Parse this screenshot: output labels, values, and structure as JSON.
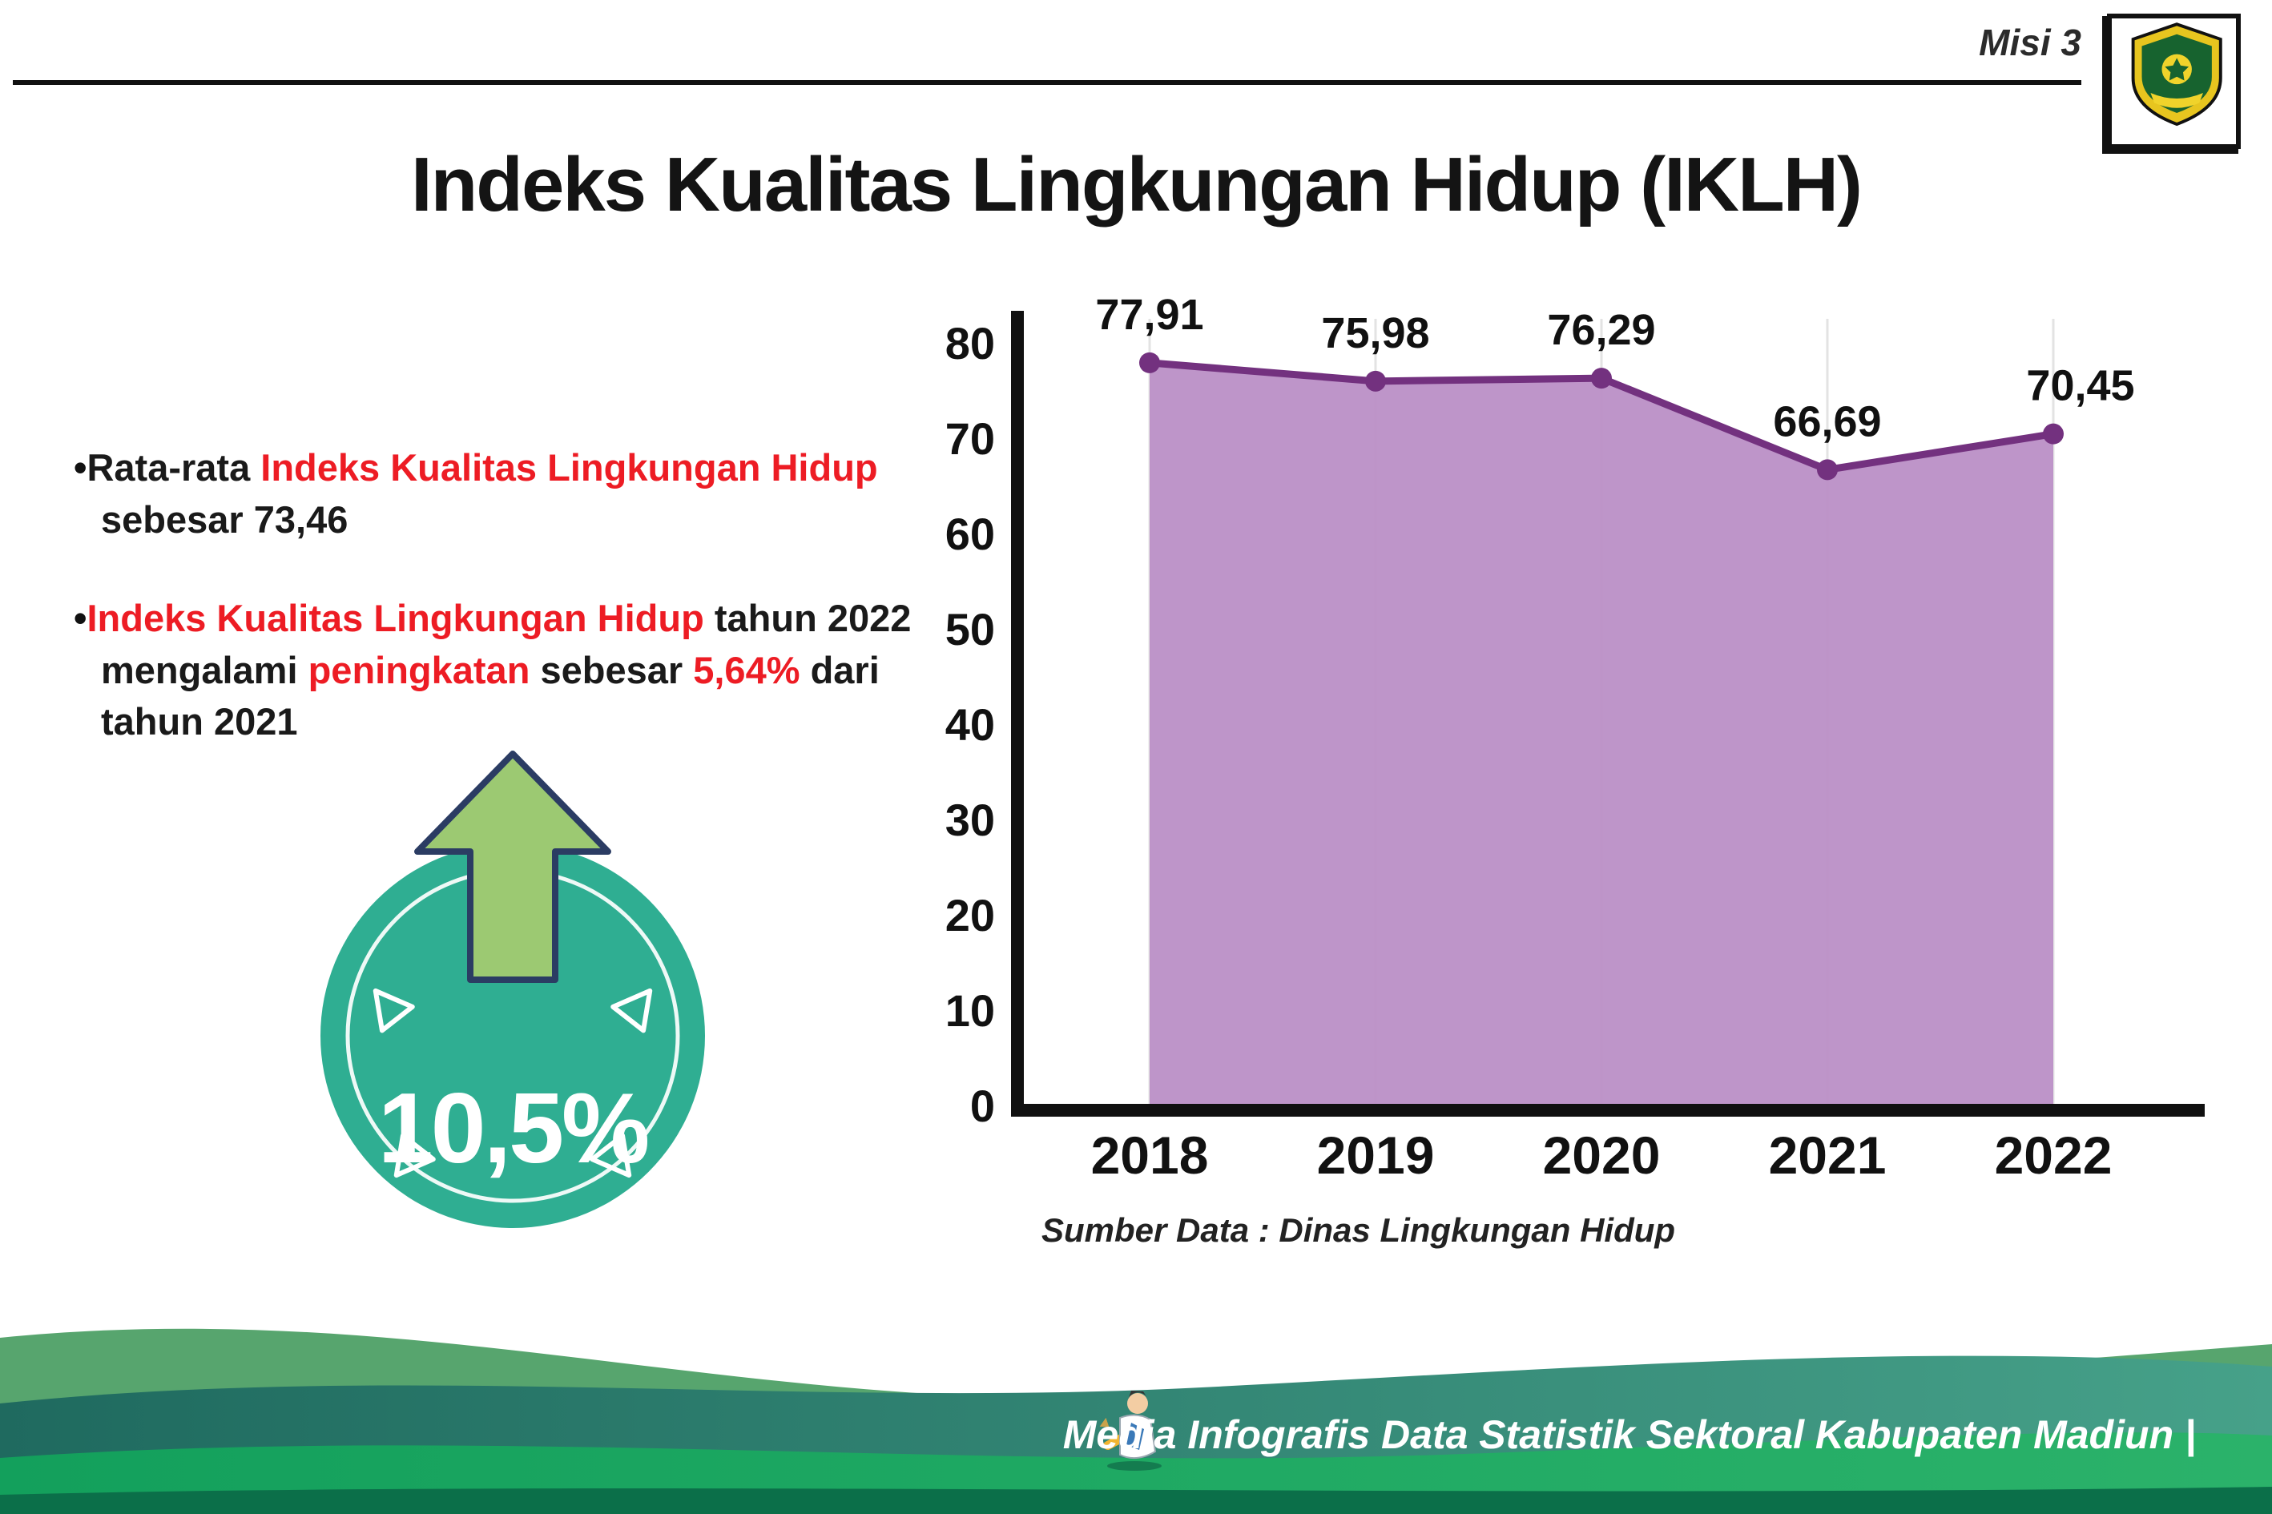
{
  "header": {
    "misi_label": "Misi 3",
    "title": "Indeks Kualitas Lingkungan Hidup (IKLH)"
  },
  "bullet_char": "•",
  "bullets": [
    {
      "segments": [
        {
          "text": "Rata-rata ",
          "color": "#1a1a1a"
        },
        {
          "text": "Indeks Kualitas Lingkungan Hidup",
          "color": "#ed1c24"
        },
        {
          "text": " sebesar 73,46",
          "color": "#1a1a1a"
        }
      ]
    },
    {
      "segments": [
        {
          "text": "Indeks Kualitas Lingkungan Hidup",
          "color": "#ed1c24"
        },
        {
          "text": " tahun 2022 mengalami ",
          "color": "#1a1a1a"
        },
        {
          "text": "peningkatan",
          "color": "#ed1c24"
        },
        {
          "text": " sebesar ",
          "color": "#1a1a1a"
        },
        {
          "text": "5,64%",
          "color": "#ed1c24"
        },
        {
          "text": " dari tahun 2021",
          "color": "#1a1a1a"
        }
      ]
    }
  ],
  "badge": {
    "value": "10,5%",
    "circle_color": "#2fae92",
    "arrow_color": "#9cc972",
    "arrow_outline": "#2b3c63"
  },
  "chart_data": {
    "type": "area",
    "categories": [
      "2018",
      "2019",
      "2020",
      "2021",
      "2022"
    ],
    "values": [
      77.91,
      75.98,
      76.29,
      66.69,
      70.45
    ],
    "value_labels": [
      "77,91",
      "75,98",
      "76,29",
      "66,69",
      "70,45"
    ],
    "ylim": [
      0,
      80
    ],
    "yticks": [
      0,
      10,
      20,
      30,
      40,
      50,
      60,
      70,
      80
    ],
    "grid": "faint-vertical",
    "legend": "none",
    "line_color": "#73317f",
    "fill_color": "#bb8fc6",
    "axis_color": "#101010",
    "source_note": "Sumber Data : Dinas Lingkungan Hidup"
  },
  "footer": {
    "text": "Media Infografis Data Statistik Sektoral Kabupaten Madiun |"
  },
  "icons": {
    "logo": "kabupaten-madiun-emblem",
    "mascot": "writing-mascot",
    "badge_arrow": "arrow-up"
  }
}
